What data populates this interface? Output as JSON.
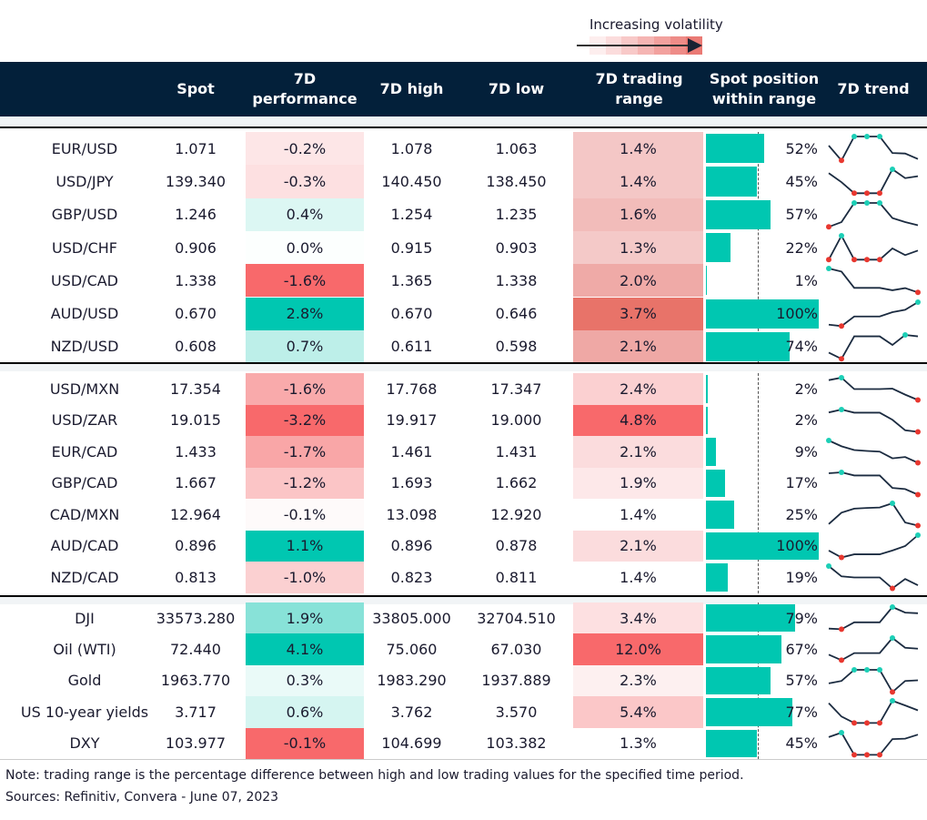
{
  "legend": {
    "label": "Increasing volatility",
    "gradient": [
      "#fdeeee",
      "#fbdcdc",
      "#f8c9c8",
      "#f5b5b3",
      "#f2a19e",
      "#ee8c88",
      "#ea7a74"
    ]
  },
  "headers": {
    "spot": "Spot",
    "perf": "7D performance",
    "high": "7D high",
    "low": "7D low",
    "range": "7D trading range",
    "position": "Spot position within range",
    "trend": "7D trend"
  },
  "colors": {
    "bar": "#00c7b1",
    "max_marker": "#1ccfb6",
    "min_marker": "#e8372f",
    "line": "#1b2b40"
  },
  "sections": [
    {
      "rows": [
        {
          "label": "EUR/USD",
          "spot": "1.071",
          "perf": "-0.2%",
          "perf_color": "#fde6e7",
          "high": "1.078",
          "low": "1.063",
          "range": "1.4%",
          "range_color": "#f4c7c6",
          "position": 52,
          "position_label": "52%",
          "trend": [
            0.62,
            0,
            1,
            1,
            1,
            0.31,
            0.29,
            0.06
          ]
        },
        {
          "label": "USD/JPY",
          "spot": "139.340",
          "perf": "-0.3%",
          "perf_color": "#fde0e1",
          "high": "140.450",
          "low": "138.450",
          "range": "1.4%",
          "range_color": "#f4c7c6",
          "position": 45,
          "position_label": "45%",
          "trend": [
            0.84,
            0.46,
            0,
            0,
            0,
            1,
            0.63,
            0.71
          ]
        },
        {
          "label": "GBP/USD",
          "spot": "1.246",
          "perf": "0.4%",
          "perf_color": "#dcf7f3",
          "high": "1.254",
          "low": "1.235",
          "range": "1.6%",
          "range_color": "#f2bcba",
          "position": 57,
          "position_label": "57%",
          "trend": [
            0,
            0.2,
            1,
            1,
            1,
            0.37,
            0.2,
            0.07
          ]
        },
        {
          "label": "USD/CHF",
          "spot": "0.906",
          "perf": "0.0%",
          "perf_color": "#fcfffe",
          "high": "0.915",
          "low": "0.903",
          "range": "1.3%",
          "range_color": "#f4c9c8",
          "position": 22,
          "position_label": "22%",
          "trend": [
            0,
            1,
            0,
            0,
            0,
            0.47,
            0.19,
            0.38
          ]
        },
        {
          "label": "USD/CAD",
          "spot": "1.338",
          "perf": "-1.6%",
          "perf_color": "#f8696b",
          "high": "1.365",
          "low": "1.338",
          "range": "2.0%",
          "range_color": "#efaaa7",
          "position": 1,
          "position_label": "1%",
          "trend": [
            1,
            0.87,
            0.19,
            0.19,
            0.19,
            0.09,
            0.18,
            0
          ]
        },
        {
          "label": "AUD/USD",
          "spot": "0.670",
          "perf": "2.8%",
          "perf_color": "#00c7b1",
          "high": "0.670",
          "low": "0.646",
          "range": "3.7%",
          "range_color": "#e87369",
          "position": 100,
          "position_label": "100%",
          "trend": [
            0.06,
            0,
            0.4,
            0.4,
            0.4,
            0.58,
            0.68,
            1
          ]
        },
        {
          "label": "NZD/USD",
          "spot": "0.608",
          "perf": "0.7%",
          "perf_color": "#bdefe9",
          "high": "0.611",
          "low": "0.598",
          "range": "2.1%",
          "range_color": "#efa8a5",
          "position": 74,
          "position_label": "74%",
          "trend": [
            0.26,
            0,
            0.94,
            0.94,
            0.94,
            0.58,
            1,
            0.94
          ]
        }
      ]
    },
    {
      "rows": [
        {
          "label": "USD/MXN",
          "spot": "17.354",
          "perf": "-1.6%",
          "perf_color": "#f9aaab",
          "high": "17.768",
          "low": "17.347",
          "range": "2.4%",
          "range_color": "#fbd0d1",
          "position": 2,
          "position_label": "2%",
          "trend": [
            0.89,
            1,
            0.49,
            0.49,
            0.49,
            0.51,
            0.24,
            0
          ]
        },
        {
          "label": "USD/ZAR",
          "spot": "19.015",
          "perf": "-3.2%",
          "perf_color": "#f8696b",
          "high": "19.917",
          "low": "19.000",
          "range": "4.8%",
          "range_color": "#f8696b",
          "position": 2,
          "position_label": "2%",
          "trend": [
            0.87,
            1,
            0.86,
            0.86,
            0.86,
            0.54,
            0.07,
            0
          ]
        },
        {
          "label": "EUR/CAD",
          "spot": "1.433",
          "perf": "-1.7%",
          "perf_color": "#f9a6a7",
          "high": "1.461",
          "low": "1.431",
          "range": "2.1%",
          "range_color": "#fbdcdd",
          "position": 9,
          "position_label": "9%",
          "trend": [
            1,
            0.74,
            0.57,
            0.53,
            0.5,
            0.2,
            0.26,
            0
          ]
        },
        {
          "label": "GBP/CAD",
          "spot": "1.667",
          "perf": "-1.2%",
          "perf_color": "#fbc5c6",
          "high": "1.693",
          "low": "1.662",
          "range": "1.9%",
          "range_color": "#fde8e9",
          "position": 17,
          "position_label": "17%",
          "trend": [
            0.96,
            1,
            0.86,
            0.86,
            0.86,
            0.3,
            0.25,
            0
          ]
        },
        {
          "label": "CAD/MXN",
          "spot": "12.964",
          "perf": "-0.1%",
          "perf_color": "#fefafa",
          "high": "13.098",
          "low": "12.920",
          "range": "1.4%",
          "range_color": "#ffffff",
          "position": 25,
          "position_label": "25%",
          "trend": [
            0.07,
            0.58,
            0.76,
            0.79,
            0.81,
            1,
            0.14,
            0
          ]
        },
        {
          "label": "AUD/CAD",
          "spot": "0.896",
          "perf": "1.1%",
          "perf_color": "#00c7b1",
          "high": "0.896",
          "low": "0.878",
          "range": "2.1%",
          "range_color": "#fbdcdd",
          "position": 100,
          "position_label": "100%",
          "trend": [
            0.31,
            0,
            0.14,
            0.14,
            0.14,
            0.31,
            0.51,
            1
          ]
        },
        {
          "label": "NZD/CAD",
          "spot": "0.813",
          "perf": "-1.0%",
          "perf_color": "#fbd0d1",
          "high": "0.823",
          "low": "0.811",
          "range": "1.4%",
          "range_color": "#ffffff",
          "position": 19,
          "position_label": "19%",
          "trend": [
            1,
            0.54,
            0.49,
            0.49,
            0.49,
            0,
            0.42,
            0.14
          ]
        }
      ]
    },
    {
      "rows": [
        {
          "label": "DJI",
          "spot": "33573.280",
          "perf": "1.9%",
          "perf_color": "#88e2d8",
          "high": "33805.000",
          "low": "32704.510",
          "range": "3.4%",
          "range_color": "#fde0e1",
          "position": 79,
          "position_label": "79%",
          "trend": [
            0.03,
            0,
            0.31,
            0.31,
            0.31,
            1,
            0.75,
            0.72
          ]
        },
        {
          "label": "Oil (WTI)",
          "spot": "72.440",
          "perf": "4.1%",
          "perf_color": "#00c7b1",
          "high": "75.060",
          "low": "67.030",
          "range": "12.0%",
          "range_color": "#f8696b",
          "position": 67,
          "position_label": "67%",
          "trend": [
            0.25,
            0,
            0.32,
            0.32,
            0.32,
            1,
            0.56,
            0.52
          ]
        },
        {
          "label": "Gold",
          "spot": "1963.770",
          "perf": "0.3%",
          "perf_color": "#eafaf8",
          "high": "1983.290",
          "low": "1937.889",
          "range": "2.3%",
          "range_color": "#fdf0f0",
          "position": 57,
          "position_label": "57%",
          "trend": [
            0.39,
            0.5,
            1,
            1,
            1,
            0,
            0.5,
            0.53
          ]
        },
        {
          "label": "US 10-year yields",
          "spot": "3.717",
          "perf": "0.6%",
          "perf_color": "#d5f5f1",
          "high": "3.762",
          "low": "3.570",
          "range": "5.4%",
          "range_color": "#fbc7c8",
          "position": 77,
          "position_label": "77%",
          "trend": [
            0.89,
            0.29,
            0,
            0,
            0,
            1,
            0.79,
            0.57
          ]
        },
        {
          "label": "DXY",
          "spot": "103.977",
          "perf": "-0.1%",
          "perf_color": "#f8696b",
          "high": "104.699",
          "low": "103.382",
          "range": "1.3%",
          "range_color": "#ffffff",
          "position": 45,
          "position_label": "45%",
          "trend": [
            0.8,
            1,
            0,
            0,
            0,
            0.71,
            0.73,
            0.91
          ]
        }
      ]
    }
  ],
  "notes": {
    "note": "Note: trading range is the percentage difference between high and low trading values for the specified time period.",
    "sources": "Sources: Refinitiv, Convera - June 07, 2023"
  }
}
